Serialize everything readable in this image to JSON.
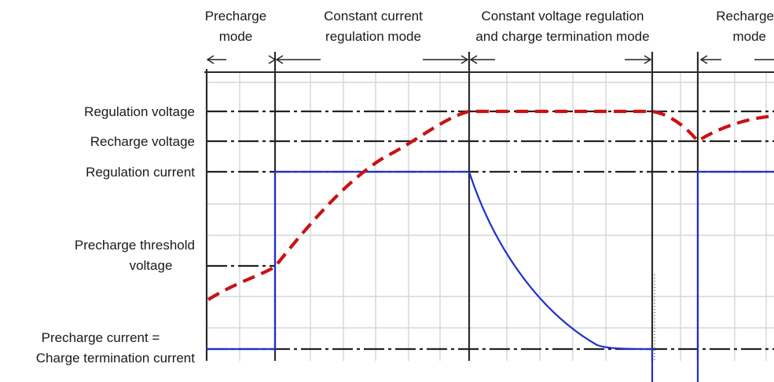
{
  "phases": {
    "precharge": [
      "Precharge",
      "mode"
    ],
    "constant_current": [
      "Constant current",
      "regulation mode"
    ],
    "constant_voltage": [
      "Constant voltage regulation",
      "and charge termination mode"
    ],
    "recharge": [
      "Recharge",
      "mode"
    ]
  },
  "levels": {
    "regulation_voltage": "Regulation voltage",
    "recharge_voltage": "Recharge voltage",
    "regulation_current": "Regulation current",
    "precharge_threshold": [
      "Precharge threshold",
      "voltage"
    ],
    "precharge_current": [
      "Precharge current =",
      "Charge termination current"
    ]
  },
  "colors": {
    "voltage_curve": "#cc1111",
    "current_curve": "#1f2fd1",
    "reference_lines": "#222222",
    "grid": "#d6d6d6"
  }
}
